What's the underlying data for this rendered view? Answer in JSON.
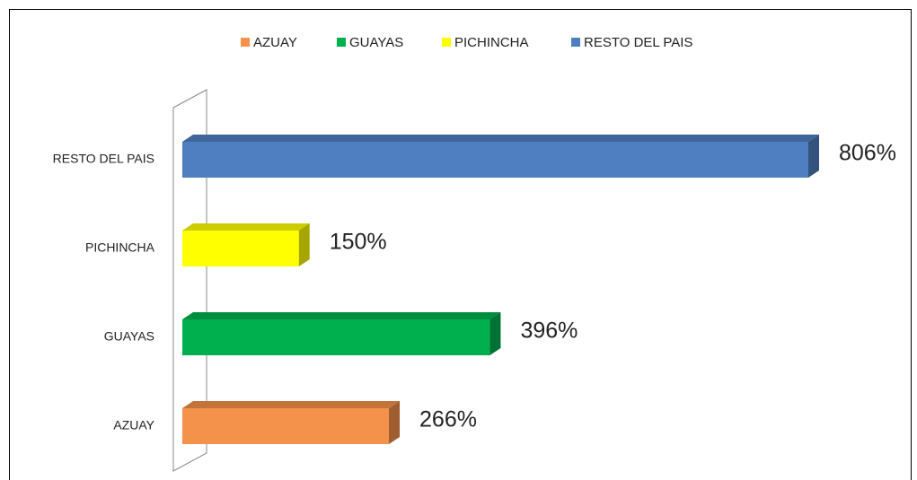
{
  "chart_data": {
    "type": "bar",
    "orientation": "horizontal",
    "categories": [
      "AZUAY",
      "GUAYAS",
      "PICHINCHA",
      "RESTO DEL PAIS"
    ],
    "values": [
      266,
      396,
      150,
      806
    ],
    "value_labels": [
      "266%",
      "396%",
      "150%",
      "806%"
    ],
    "colors": [
      "#f4914a",
      "#00b04f",
      "#ffff00",
      "#4f7fc0"
    ],
    "legend": "top"
  }
}
